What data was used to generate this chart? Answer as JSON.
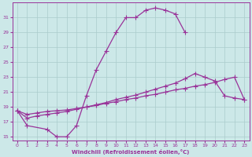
{
  "xlabel": "Windchill (Refroidissement éolien,°C)",
  "bg_color": "#cce8e8",
  "grid_color": "#aacccc",
  "line_color": "#993399",
  "xlim": [
    -0.5,
    23.5
  ],
  "ylim": [
    14.5,
    33.0
  ],
  "xticks": [
    0,
    1,
    2,
    3,
    4,
    5,
    6,
    7,
    8,
    9,
    10,
    11,
    12,
    13,
    14,
    15,
    16,
    17,
    18,
    19,
    20,
    21,
    22,
    23
  ],
  "yticks": [
    15,
    17,
    19,
    21,
    23,
    25,
    27,
    29,
    31
  ],
  "line1_x": [
    0,
    1,
    3,
    4,
    5,
    6,
    7,
    8,
    9,
    10,
    11,
    12,
    13,
    14,
    15,
    16,
    17
  ],
  "line1_y": [
    18.5,
    16.5,
    16.0,
    15.0,
    15.0,
    16.5,
    20.5,
    24.0,
    26.5,
    29.0,
    31.0,
    31.0,
    32.0,
    32.3,
    32.0,
    31.5,
    29.0
  ],
  "line2_x": [
    0,
    1,
    2,
    3,
    4,
    5,
    6,
    7,
    8,
    9,
    10,
    11,
    12,
    13,
    14,
    15,
    16,
    17,
    18,
    19,
    20,
    21,
    22,
    23
  ],
  "line2_y": [
    18.5,
    17.5,
    17.8,
    18.0,
    18.2,
    18.4,
    18.7,
    19.0,
    19.3,
    19.6,
    20.0,
    20.3,
    20.6,
    21.0,
    21.4,
    21.8,
    22.2,
    22.8,
    23.5,
    23.0,
    22.5,
    20.5,
    20.2,
    20.0
  ],
  "line3_x": [
    0,
    1,
    2,
    3,
    4,
    5,
    6,
    7,
    8,
    9,
    10,
    11,
    12,
    13,
    14,
    15,
    16,
    17,
    18,
    19,
    20,
    21,
    22,
    23
  ],
  "line3_y": [
    18.5,
    18.0,
    18.2,
    18.4,
    18.5,
    18.6,
    18.8,
    19.0,
    19.2,
    19.5,
    19.7,
    20.0,
    20.2,
    20.5,
    20.7,
    21.0,
    21.3,
    21.5,
    21.8,
    22.0,
    22.3,
    22.7,
    23.0,
    20.0
  ]
}
